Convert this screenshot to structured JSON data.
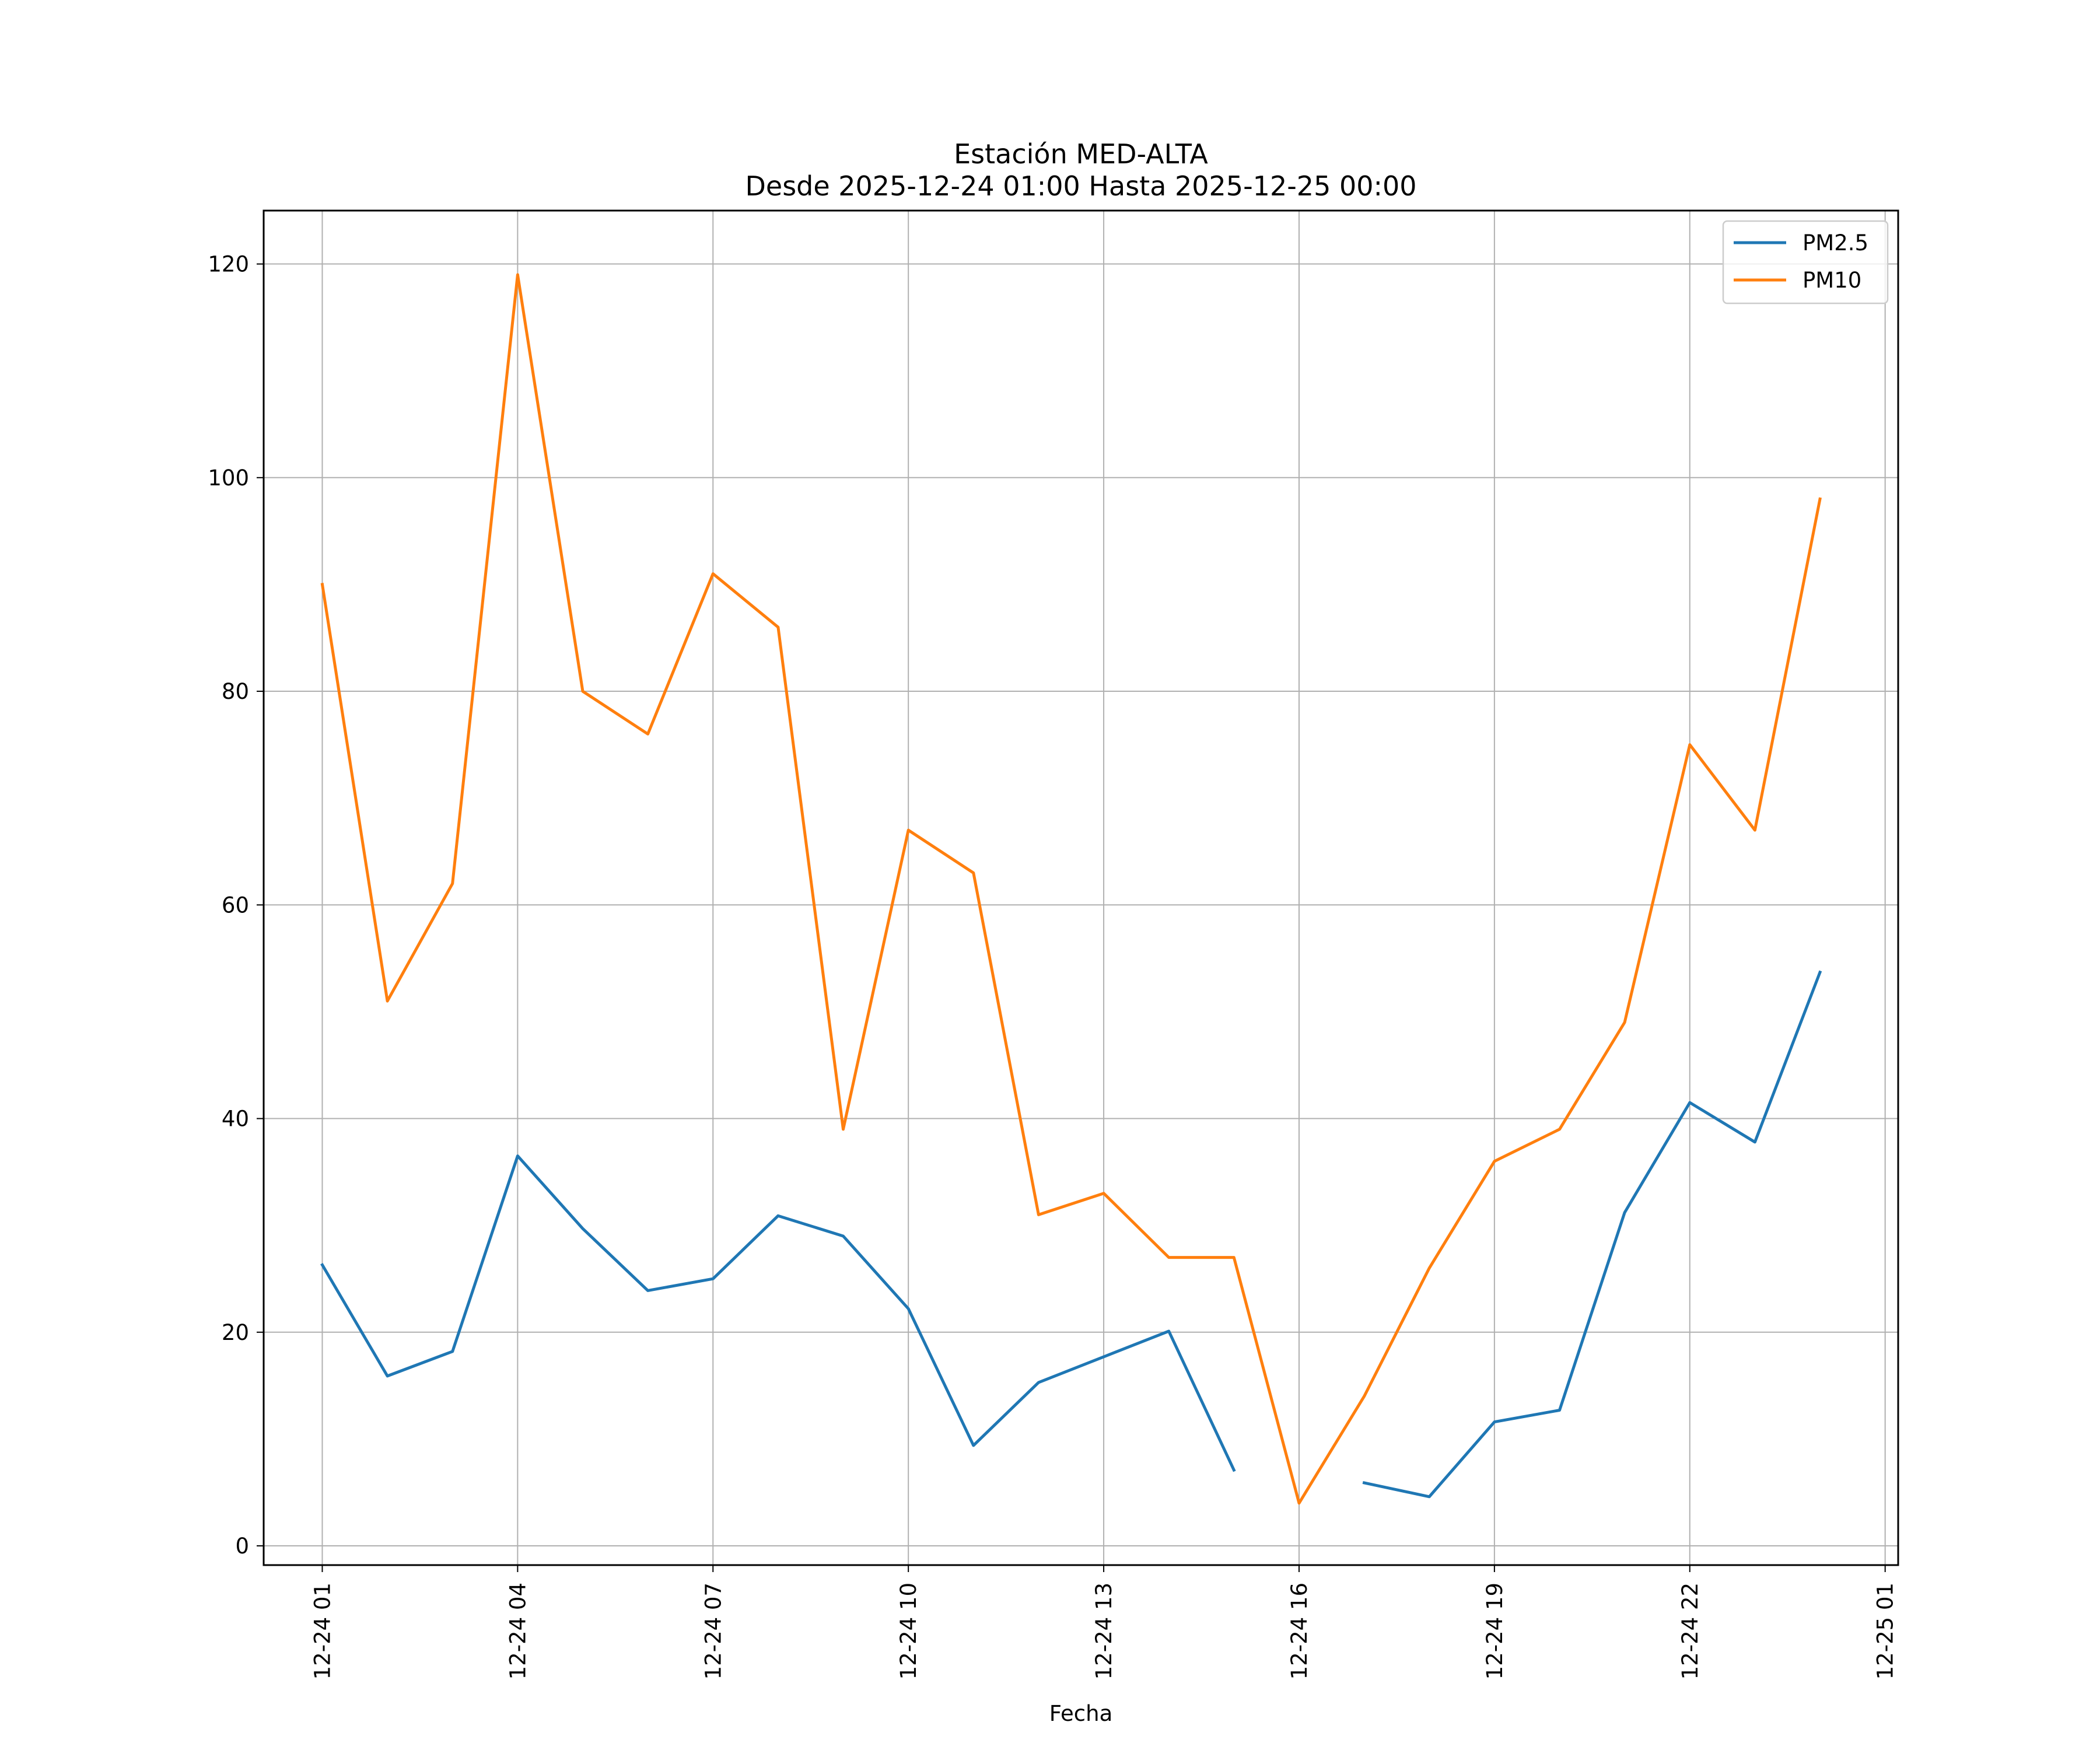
{
  "chart_data": {
    "type": "line",
    "title": "Estación MED-ALTA",
    "subtitle": "Desde 2025-12-24 01:00 Hasta 2025-12-25 00:00",
    "xlabel": "Fecha",
    "ylabel": "",
    "ylim": [
      -1.8,
      125
    ],
    "xlim": [
      -0.9,
      24.2
    ],
    "grid": true,
    "legend_position": "top-right",
    "x_ticks": [
      {
        "pos": 0,
        "label": "12-24 01"
      },
      {
        "pos": 3,
        "label": "12-24 04"
      },
      {
        "pos": 6,
        "label": "12-24 07"
      },
      {
        "pos": 9,
        "label": "12-24 10"
      },
      {
        "pos": 12,
        "label": "12-24 13"
      },
      {
        "pos": 15,
        "label": "12-24 16"
      },
      {
        "pos": 18,
        "label": "12-24 19"
      },
      {
        "pos": 21,
        "label": "12-24 22"
      },
      {
        "pos": 24,
        "label": "12-25 01"
      }
    ],
    "y_ticks": [
      0,
      20,
      40,
      60,
      80,
      100,
      120
    ],
    "x": [
      "01:00",
      "02:00",
      "03:00",
      "04:00",
      "05:00",
      "06:00",
      "07:00",
      "08:00",
      "09:00",
      "10:00",
      "11:00",
      "12:00",
      "13:00",
      "14:00",
      "15:00",
      "16:00",
      "17:00",
      "18:00",
      "19:00",
      "20:00",
      "21:00",
      "22:00",
      "23:00",
      "00:00"
    ],
    "series": [
      {
        "name": "PM2.5",
        "color": "#1f77b4",
        "values": [
          26.3,
          15.9,
          18.2,
          36.5,
          29.7,
          23.9,
          25.0,
          30.9,
          29.0,
          22.2,
          9.4,
          15.3,
          17.7,
          20.1,
          7.1,
          null,
          5.9,
          4.6,
          11.6,
          12.7,
          31.2,
          41.5,
          37.8,
          53.7
        ]
      },
      {
        "name": "PM10",
        "color": "#ff7f0e",
        "values": [
          90,
          51,
          62,
          119,
          80,
          76,
          91,
          86,
          39,
          67,
          63,
          31,
          33,
          27,
          27,
          4,
          14,
          26,
          36,
          39,
          49,
          75,
          67,
          98
        ]
      }
    ]
  }
}
